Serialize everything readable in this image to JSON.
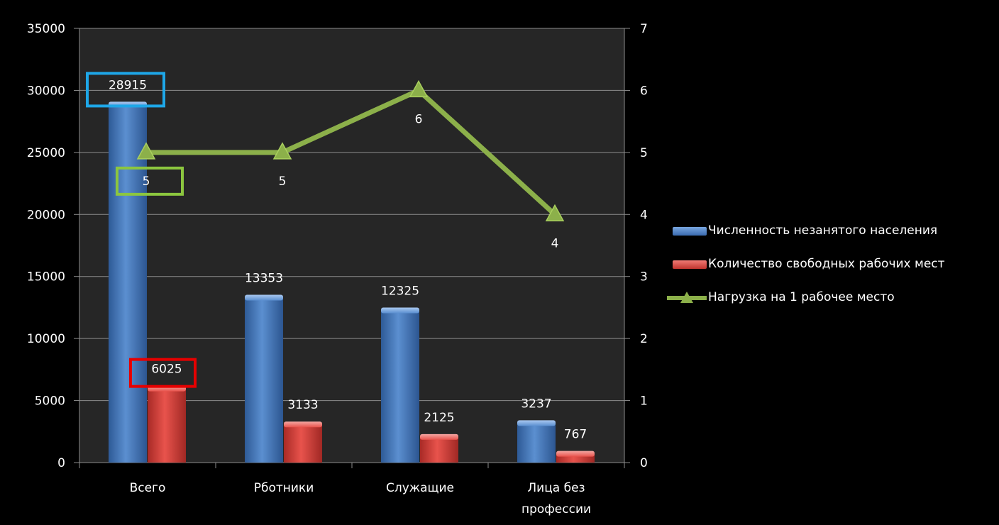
{
  "colors": {
    "background": "#000000",
    "plot_area": "#262626",
    "gridline": "#8c8c8c",
    "axis_text": "#ffffff",
    "series_blue": "#4f81bd",
    "series_red": "#e0453f",
    "series_green": "#8cb04a"
  },
  "annotations": [
    {
      "target": "28915",
      "color": "#1ea7e8"
    },
    {
      "target": "5",
      "color": "#8cc63f"
    },
    {
      "target": "6025",
      "color": "#e60000"
    }
  ],
  "chart_data": {
    "type": "bar",
    "combo": "bar + line on secondary axis",
    "categories": [
      [
        "Всего"
      ],
      [
        "Рботники"
      ],
      [
        "Служащие"
      ],
      [
        "Лица без",
        "профессии"
      ]
    ],
    "series": [
      {
        "name": "Численность незанятого населения",
        "type": "bar",
        "axis": "left",
        "color": "#4f81bd",
        "values": [
          28915,
          13353,
          12325,
          3237
        ]
      },
      {
        "name": "Количество свободных рабочих мест",
        "type": "bar",
        "axis": "left",
        "color": "#e0453f",
        "values": [
          6025,
          3133,
          2125,
          767
        ]
      },
      {
        "name": "Нагрузка на 1 рабочее место",
        "type": "line",
        "axis": "right",
        "color": "#8cb04a",
        "marker": "triangle",
        "values": [
          5,
          5,
          6,
          4
        ]
      }
    ],
    "y_left": {
      "lim": [
        0,
        35000
      ],
      "ticks": [
        "0",
        "5000",
        "10000",
        "15000",
        "20000",
        "25000",
        "30000",
        "35000"
      ]
    },
    "y_right": {
      "lim": [
        0,
        7
      ],
      "ticks": [
        "0",
        "1",
        "2",
        "3",
        "4",
        "5",
        "6",
        "7"
      ]
    },
    "title": "",
    "grid": true,
    "legend_position": "right"
  }
}
